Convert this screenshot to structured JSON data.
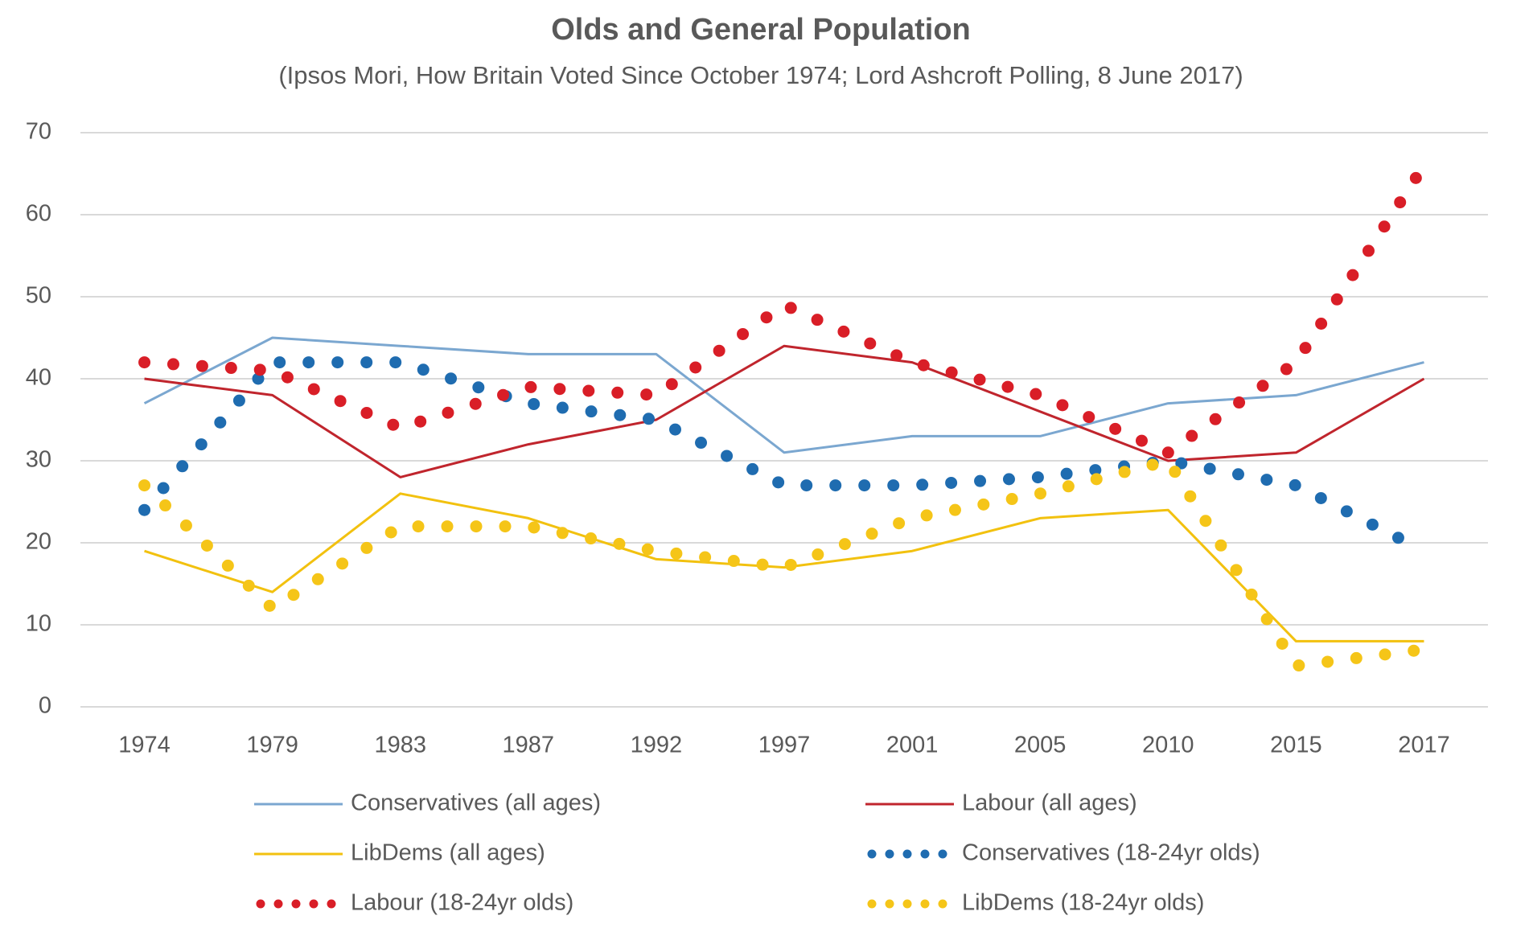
{
  "chart_data": {
    "type": "line",
    "title": "Olds and General Population",
    "subtitle": "(Ipsos Mori, How Britain Voted Since October 1974; Lord Ashcroft Polling, 8 June 2017)",
    "categories": [
      "1974",
      "1979",
      "1983",
      "1987",
      "1992",
      "1997",
      "2001",
      "2005",
      "2010",
      "2015",
      "2017"
    ],
    "series": [
      {
        "name": "Conservatives (all ages)",
        "color": "#7ba7d0",
        "style": "solid",
        "values": [
          37,
          45,
          44,
          43,
          43,
          31,
          33,
          33,
          37,
          38,
          42
        ]
      },
      {
        "name": "Labour (all ages)",
        "color": "#c0252d",
        "style": "solid",
        "values": [
          40,
          38,
          28,
          32,
          35,
          44,
          42,
          36,
          30,
          31,
          40
        ]
      },
      {
        "name": "LibDems (all ages)",
        "color": "#f2c10f",
        "style": "solid",
        "values": [
          19,
          14,
          26,
          23,
          18,
          17,
          19,
          23,
          24,
          8,
          8
        ]
      },
      {
        "name": "Conservatives (18-24yr olds)",
        "color": "#1f6cb0",
        "style": "dotted",
        "values": [
          24,
          42,
          42,
          37,
          35,
          27,
          27,
          28,
          30,
          27,
          19
        ]
      },
      {
        "name": "Labour (18-24yr olds)",
        "color": "#d91e27",
        "style": "dotted",
        "values": [
          42,
          41,
          34,
          39,
          38,
          49,
          42,
          38,
          31,
          42,
          66
        ]
      },
      {
        "name": "LibDems (18-24yr olds)",
        "color": "#f5c518",
        "style": "dotted",
        "values": [
          27,
          12,
          22,
          22,
          19,
          17,
          23,
          26,
          30,
          5,
          7
        ]
      }
    ],
    "ylim": [
      0,
      70
    ],
    "yticks": [
      0,
      10,
      20,
      30,
      40,
      50,
      60,
      70
    ],
    "grid": true,
    "legend": "bottom"
  }
}
